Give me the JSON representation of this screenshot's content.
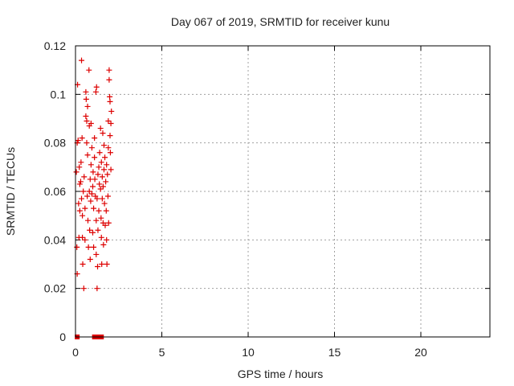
{
  "chart_data": {
    "type": "scatter",
    "title": "Day 067 of 2019, SRMTID for receiver kunu",
    "xlabel": "GPS time / hours",
    "ylabel": "SRMTID / TECUs",
    "xlim": [
      0,
      24
    ],
    "ylim": [
      0,
      0.12
    ],
    "xticks": [
      0,
      5,
      10,
      15,
      20
    ],
    "xtick_labels": [
      "0",
      "5",
      "10",
      "15",
      "20"
    ],
    "yticks": [
      0,
      0.02,
      0.04,
      0.06,
      0.08,
      0.1,
      0.12
    ],
    "ytick_labels": [
      "0",
      "0.02",
      "0.04",
      "0.06",
      "0.08",
      "0.1",
      "0.12"
    ],
    "grid": true,
    "legend": "none",
    "series": [
      {
        "marker": "plus",
        "color": "#dd0000",
        "points": [
          [
            0.05,
            0.068
          ],
          [
            0.1,
            0.08
          ],
          [
            0.12,
            0.104
          ],
          [
            0.15,
            0.081
          ],
          [
            0.18,
            0.055
          ],
          [
            0.2,
            0.041
          ],
          [
            0.08,
            0.037
          ],
          [
            0.1,
            0.026
          ],
          [
            0.22,
            0.07
          ],
          [
            0.25,
            0.063
          ],
          [
            0.25,
            0.052
          ],
          [
            0.3,
            0.064
          ],
          [
            0.32,
            0.072
          ],
          [
            0.35,
            0.114
          ],
          [
            0.38,
            0.082
          ],
          [
            0.35,
            0.057
          ],
          [
            0.4,
            0.05
          ],
          [
            0.4,
            0.041
          ],
          [
            0.42,
            0.03
          ],
          [
            0.45,
            0.06
          ],
          [
            0.48,
            0.02
          ],
          [
            0.5,
            0.066
          ],
          [
            0.55,
            0.04
          ],
          [
            0.55,
            0.053
          ],
          [
            0.6,
            0.101
          ],
          [
            0.6,
            0.091
          ],
          [
            0.62,
            0.098
          ],
          [
            0.65,
            0.089
          ],
          [
            0.65,
            0.08
          ],
          [
            0.68,
            0.058
          ],
          [
            0.7,
            0.095
          ],
          [
            0.7,
            0.075
          ],
          [
            0.72,
            0.048
          ],
          [
            0.75,
            0.037
          ],
          [
            0.78,
            0.11
          ],
          [
            0.8,
            0.087
          ],
          [
            0.8,
            0.06
          ],
          [
            0.82,
            0.044
          ],
          [
            0.85,
            0.065
          ],
          [
            0.85,
            0.032
          ],
          [
            0.88,
            0.056
          ],
          [
            0.9,
            0.071
          ],
          [
            0.9,
            0.088
          ],
          [
            0.95,
            0.078
          ],
          [
            0.95,
            0.059
          ],
          [
            1.0,
            0.062
          ],
          [
            1.0,
            0.043
          ],
          [
            1.02,
            0.068
          ],
          [
            1.05,
            0.053
          ],
          [
            1.05,
            0.037
          ],
          [
            1.1,
            0.082
          ],
          [
            1.1,
            0.074
          ],
          [
            1.12,
            0.065
          ],
          [
            1.15,
            0.058
          ],
          [
            1.18,
            0.101
          ],
          [
            1.2,
            0.048
          ],
          [
            1.2,
            0.034
          ],
          [
            1.22,
            0.103
          ],
          [
            1.25,
            0.02
          ],
          [
            1.25,
            0.057
          ],
          [
            1.28,
            0.029
          ],
          [
            1.3,
            0.044
          ],
          [
            1.3,
            0.067
          ],
          [
            1.35,
            0.07
          ],
          [
            1.35,
            0.052
          ],
          [
            1.38,
            0.063
          ],
          [
            1.4,
            0.076
          ],
          [
            1.45,
            0.086
          ],
          [
            1.45,
            0.061
          ],
          [
            1.48,
            0.049
          ],
          [
            1.5,
            0.072
          ],
          [
            1.5,
            0.041
          ],
          [
            1.52,
            0.03
          ],
          [
            1.55,
            0.066
          ],
          [
            1.55,
            0.057
          ],
          [
            1.58,
            0.084
          ],
          [
            1.6,
            0.047
          ],
          [
            1.6,
            0.062
          ],
          [
            1.62,
            0.038
          ],
          [
            1.65,
            0.069
          ],
          [
            1.65,
            0.079
          ],
          [
            1.68,
            0.055
          ],
          [
            1.7,
            0.074
          ],
          [
            1.72,
            0.046
          ],
          [
            1.75,
            0.064
          ],
          [
            1.78,
            0.052
          ],
          [
            1.8,
            0.071
          ],
          [
            1.8,
            0.04
          ],
          [
            1.82,
            0.03
          ],
          [
            1.85,
            0.067
          ],
          [
            1.88,
            0.058
          ],
          [
            1.9,
            0.089
          ],
          [
            1.9,
            0.078
          ],
          [
            1.92,
            0.047
          ],
          [
            1.95,
            0.11
          ],
          [
            1.95,
            0.106
          ],
          [
            1.98,
            0.099
          ],
          [
            2.0,
            0.097
          ],
          [
            2.0,
            0.083
          ],
          [
            2.02,
            0.076
          ],
          [
            2.05,
            0.088
          ],
          [
            2.05,
            0.069
          ],
          [
            2.08,
            0.093
          ]
        ]
      },
      {
        "marker": "square",
        "color": "#dd0000",
        "points": [
          [
            0.1,
            0.0
          ],
          [
            1.1,
            0.0
          ],
          [
            1.25,
            0.0
          ],
          [
            1.5,
            0.0
          ]
        ]
      }
    ]
  }
}
